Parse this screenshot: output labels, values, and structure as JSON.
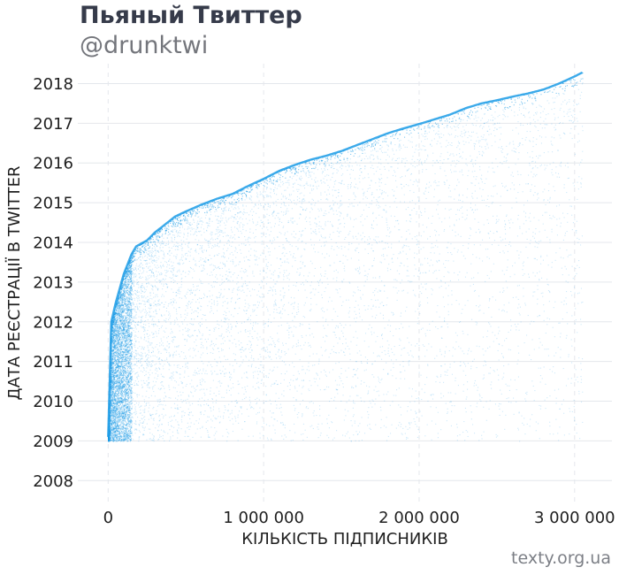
{
  "header": {
    "title": "Пьяный Твиттер",
    "subtitle": "@drunktwi"
  },
  "footer": {
    "source": "texty.org.ua"
  },
  "colors": {
    "points": "#1a9be6",
    "grid": "#e4e7ec",
    "title": "#363b4a",
    "subtitle": "#74767c"
  },
  "chart_data": {
    "type": "scatter",
    "xlabel": "КІЛЬКІСТЬ ПІДПИСНИКІВ",
    "ylabel": "ДАТА РЕЄСТРАЦІЇ В TWITTER",
    "xlim": [
      -70000,
      3240000
    ],
    "ylim": [
      2007.45,
      2018.5
    ],
    "xticks": [
      {
        "value": 0,
        "label": "0"
      },
      {
        "value": 1000000,
        "label": "1 000 000"
      },
      {
        "value": 2000000,
        "label": "2 000 000"
      },
      {
        "value": 3000000,
        "label": "3 000 000"
      }
    ],
    "yticks": [
      {
        "value": 2008,
        "label": "2008"
      },
      {
        "value": 2009,
        "label": "2009"
      },
      {
        "value": 2010,
        "label": "2010"
      },
      {
        "value": 2011,
        "label": "2011"
      },
      {
        "value": 2012,
        "label": "2012"
      },
      {
        "value": 2013,
        "label": "2013"
      },
      {
        "value": 2014,
        "label": "2014"
      },
      {
        "value": 2015,
        "label": "2015"
      },
      {
        "value": 2016,
        "label": "2016"
      },
      {
        "value": 2017,
        "label": "2017"
      },
      {
        "value": 2018,
        "label": "2018"
      }
    ],
    "grid": true,
    "upper_frontier": {
      "x": [
        0,
        20000,
        50000,
        100000,
        150000,
        180000,
        250000,
        300000,
        350000,
        430000,
        500000,
        600000,
        700000,
        800000,
        900000,
        1000000,
        1100000,
        1200000,
        1300000,
        1400000,
        1500000,
        1600000,
        1700000,
        1800000,
        1900000,
        2000000,
        2100000,
        2200000,
        2300000,
        2400000,
        2500000,
        2600000,
        2700000,
        2800000,
        2900000,
        3000000,
        3050000
      ],
      "y": [
        2009.1,
        2012.0,
        2012.5,
        2013.2,
        2013.7,
        2013.9,
        2014.05,
        2014.25,
        2014.4,
        2014.65,
        2014.78,
        2014.95,
        2015.1,
        2015.22,
        2015.42,
        2015.6,
        2015.8,
        2015.95,
        2016.08,
        2016.18,
        2016.3,
        2016.45,
        2016.6,
        2016.75,
        2016.87,
        2016.98,
        2017.1,
        2017.22,
        2017.38,
        2017.5,
        2017.58,
        2017.67,
        2017.75,
        2017.85,
        2018.0,
        2018.18,
        2018.28
      ]
    }
  }
}
